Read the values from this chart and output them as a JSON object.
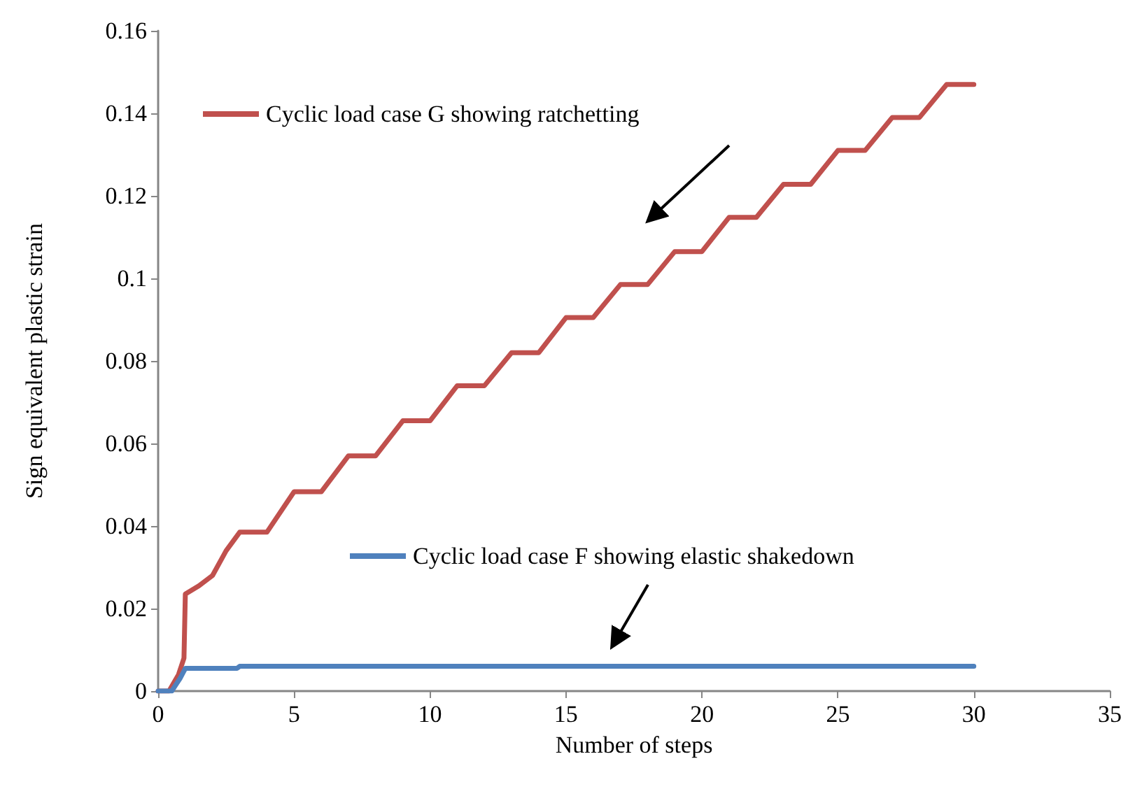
{
  "chart_data": {
    "type": "line",
    "xlabel": "Number of steps",
    "ylabel": "Sign equivalent plastic strain",
    "xlim": [
      0,
      35
    ],
    "xticks": [
      0,
      5,
      10,
      15,
      20,
      25,
      30,
      35
    ],
    "ylim": [
      0,
      0.16
    ],
    "yticks": [
      0,
      0.02,
      0.04,
      0.06,
      0.08,
      0.1,
      0.12,
      0.14,
      0.16
    ],
    "grid": false,
    "legend": "top left",
    "marker": "none",
    "line_style": "solid",
    "series": [
      {
        "name": "Cyclic load case G showing ratchetting",
        "color": "#c0504d",
        "x": [
          0,
          0.4,
          0.75,
          0.95,
          1.0,
          1.5,
          2,
          2.5,
          3,
          4,
          5,
          6,
          7,
          8,
          9,
          10,
          11,
          12,
          13,
          14,
          15,
          16,
          17,
          18,
          19,
          20,
          21,
          22,
          23,
          24,
          25,
          26,
          27,
          28,
          29,
          30
        ],
        "values": [
          0,
          0,
          0.004,
          0.008,
          0.0235,
          0.0255,
          0.028,
          0.034,
          0.0385,
          0.0385,
          0.0483,
          0.0483,
          0.057,
          0.057,
          0.0655,
          0.0655,
          0.074,
          0.074,
          0.082,
          0.082,
          0.0905,
          0.0905,
          0.0985,
          0.0985,
          0.1065,
          0.1065,
          0.1148,
          0.1148,
          0.1228,
          0.1228,
          0.131,
          0.131,
          0.139,
          0.139,
          0.147,
          0.147
        ]
      },
      {
        "name": "Cyclic load case F showing elastic shakedown",
        "color": "#4f81bd",
        "x": [
          0,
          0.5,
          0.8,
          1.0,
          2.9,
          3.0,
          30
        ],
        "values": [
          0,
          0,
          0.003,
          0.0055,
          0.0055,
          0.006,
          0.006
        ]
      }
    ]
  }
}
